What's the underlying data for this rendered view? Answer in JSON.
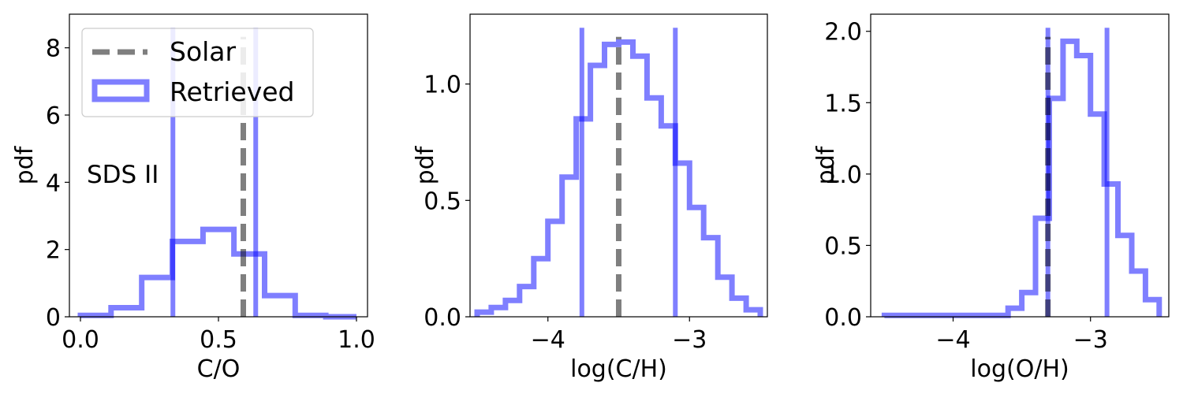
{
  "figure": {
    "colors": {
      "retrieved": "#0000ff",
      "solar": "#000000",
      "frame": "#000000"
    }
  },
  "legend": {
    "entries": [
      {
        "label": "Solar",
        "style": "dashed-line",
        "color": "#808080"
      },
      {
        "label": "Retrieved",
        "style": "histogram-patch",
        "color": "#8080ff"
      }
    ],
    "placement": "upper-left (panel 1)"
  },
  "chart_data": [
    {
      "type": "histogram",
      "xlabel": "C/O",
      "ylabel": "pdf",
      "annotation": "SDS II",
      "xlim": [
        -0.04,
        1.04
      ],
      "ylim": [
        0,
        9
      ],
      "xticks": [
        0.0,
        0.5,
        1.0
      ],
      "xticklabels": [
        "0.0",
        "0.5",
        "1.0"
      ],
      "yticks": [
        0,
        2,
        4,
        6,
        8
      ],
      "yticklabels": [
        "0",
        "2",
        "4",
        "6",
        "8"
      ],
      "bin_edges": [
        0.0,
        0.111,
        0.222,
        0.333,
        0.444,
        0.556,
        0.667,
        0.778,
        0.889,
        1.0
      ],
      "density": [
        0.04,
        0.27,
        1.17,
        2.24,
        2.6,
        1.87,
        0.63,
        0.04,
        0.0
      ],
      "solar_value": 0.59,
      "bounds": [
        0.335,
        0.635
      ]
    },
    {
      "type": "histogram",
      "xlabel": "log(C/H)",
      "ylabel": "pdf",
      "annotation": "",
      "xlim": [
        -4.55,
        -2.45
      ],
      "ylim": [
        0,
        1.3
      ],
      "xticks": [
        -4,
        -3
      ],
      "xticklabels": [
        "−4",
        "−3"
      ],
      "yticks": [
        0.0,
        0.5,
        1.0
      ],
      "yticklabels": [
        "0.0",
        "0.5",
        "1.0"
      ],
      "bin_edges": [
        -4.5,
        -4.4,
        -4.3,
        -4.2,
        -4.1,
        -4.0,
        -3.9,
        -3.8,
        -3.7,
        -3.6,
        -3.5,
        -3.4,
        -3.3,
        -3.2,
        -3.1,
        -3.0,
        -2.9,
        -2.8,
        -2.7,
        -2.6,
        -2.5
      ],
      "density": [
        0.02,
        0.04,
        0.07,
        0.13,
        0.25,
        0.41,
        0.6,
        0.85,
        1.08,
        1.17,
        1.18,
        1.12,
        0.94,
        0.82,
        0.66,
        0.47,
        0.34,
        0.17,
        0.08,
        0.03
      ],
      "solar_value": -3.5,
      "bounds": [
        -3.76,
        -3.1
      ]
    },
    {
      "type": "histogram",
      "xlabel": "log(O/H)",
      "ylabel": "pdf",
      "annotation": "",
      "xlim": [
        -4.6,
        -2.43
      ],
      "ylim": [
        0,
        2.12
      ],
      "xticks": [
        -4,
        -3
      ],
      "xticklabels": [
        "−4",
        "−3"
      ],
      "yticks": [
        0.0,
        0.5,
        1.0,
        1.5,
        2.0
      ],
      "yticklabels": [
        "0.0",
        "0.5",
        "1.0",
        "1.5",
        "2.0"
      ],
      "bin_edges": [
        -4.5,
        -3.6,
        -3.5,
        -3.4,
        -3.3,
        -3.2,
        -3.1,
        -3.0,
        -2.9,
        -2.8,
        -2.7,
        -2.6,
        -2.5
      ],
      "density": [
        0.01,
        0.06,
        0.17,
        0.69,
        1.53,
        1.93,
        1.83,
        1.42,
        0.93,
        0.57,
        0.32,
        0.12
      ],
      "solar_value": -3.31,
      "bounds": [
        -3.31,
        -2.88
      ]
    }
  ]
}
